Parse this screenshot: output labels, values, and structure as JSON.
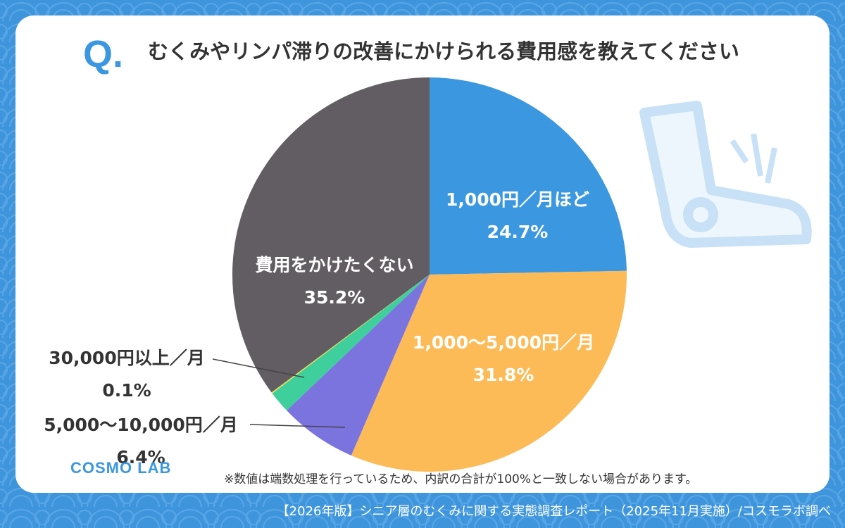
{
  "badge": "Q.",
  "chart_data": {
    "type": "pie",
    "title": "むくみやリンパ滞りの改善にかけられる費用感を教えてください",
    "categories": [
      "1,000円／月ほど",
      "1,000〜5,000円／月",
      "5,000〜10,000円／月",
      null,
      "30,000円以上／月",
      "費用をかけたくない"
    ],
    "values": [
      24.7,
      31.8,
      6.4,
      1.8,
      0.1,
      35.2
    ],
    "value_labels": [
      "24.7%",
      "31.8%",
      "6.4%",
      null,
      "0.1%",
      "35.2%"
    ],
    "colors": [
      "#3a97e0",
      "#fdbb58",
      "#7b74df",
      "#3fcf9d",
      "#e8e04a",
      "#625d62"
    ]
  },
  "note": "※数値は端数処理を行っているため、内訳の合計が100%と一致しない場合があります。",
  "source": "【2026年版】シニア層のむくみに関する実態調査レポート（2025年11月実施）/コスモラボ調べ",
  "logo": "COSMO LAB"
}
